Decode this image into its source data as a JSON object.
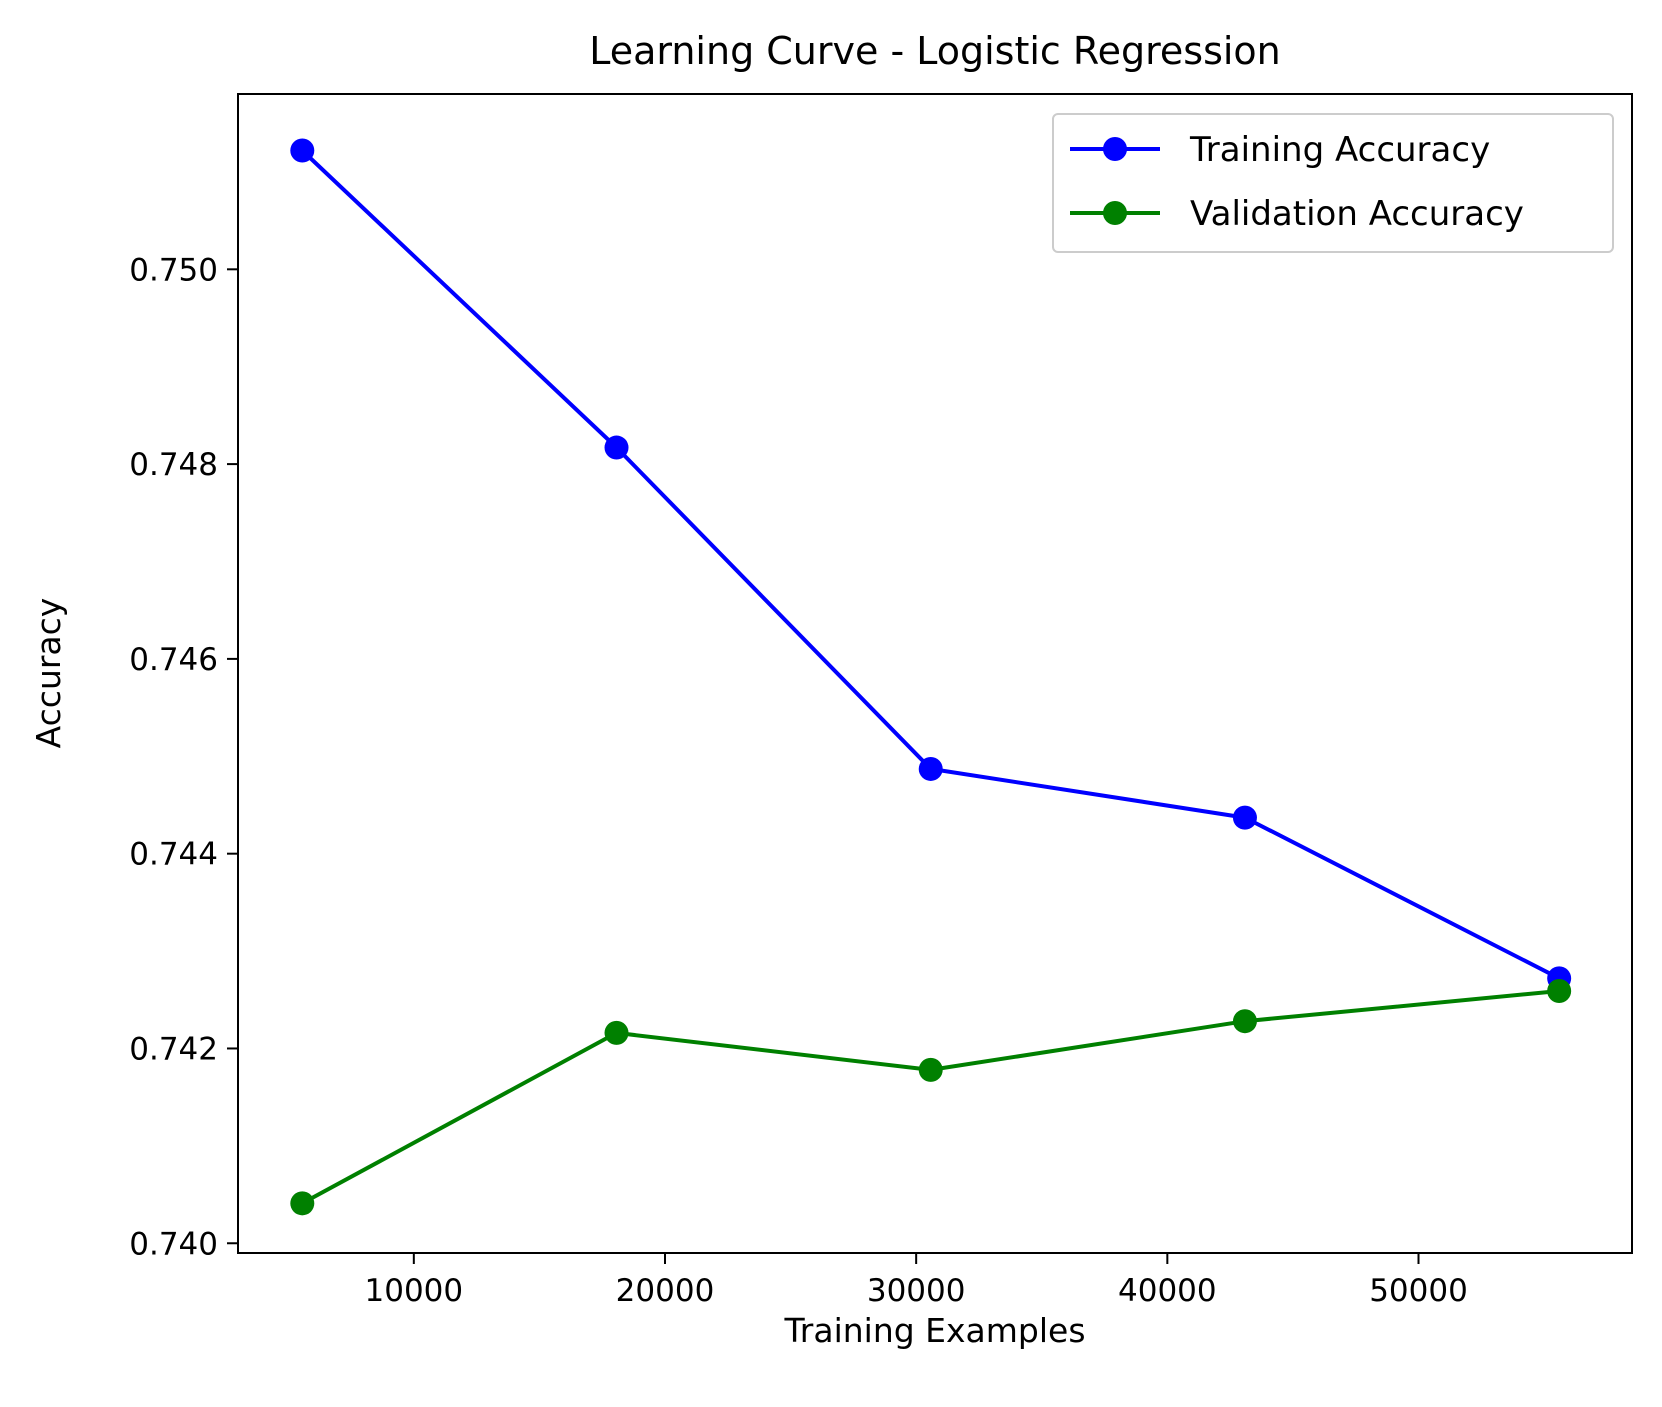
{
  "chart_data": {
    "type": "line",
    "title": "Learning Curve - Logistic Regression",
    "xlabel": "Training Examples",
    "ylabel": "Accuracy",
    "xlim": [
      3000,
      58500
    ],
    "ylim": [
      0.7399,
      0.7518
    ],
    "xticks": [
      10000,
      20000,
      30000,
      40000,
      50000
    ],
    "xtick_labels": [
      "10000",
      "20000",
      "30000",
      "40000",
      "50000"
    ],
    "yticks": [
      0.74,
      0.742,
      0.744,
      0.746,
      0.748,
      0.75
    ],
    "ytick_labels": [
      "0.740",
      "0.742",
      "0.744",
      "0.746",
      "0.748",
      "0.750"
    ],
    "x": [
      5560,
      18070,
      30580,
      43090,
      55600
    ],
    "series": [
      {
        "name": "Training Accuracy",
        "color": "#0000ff",
        "marker": "circle",
        "values": [
          0.75122,
          0.74817,
          0.74487,
          0.74437,
          0.74272
        ]
      },
      {
        "name": "Validation Accuracy",
        "color": "#008000",
        "marker": "circle",
        "values": [
          0.74041,
          0.74216,
          0.74178,
          0.74228,
          0.74259
        ]
      }
    ],
    "grid": false,
    "legend_position": "top-right"
  }
}
